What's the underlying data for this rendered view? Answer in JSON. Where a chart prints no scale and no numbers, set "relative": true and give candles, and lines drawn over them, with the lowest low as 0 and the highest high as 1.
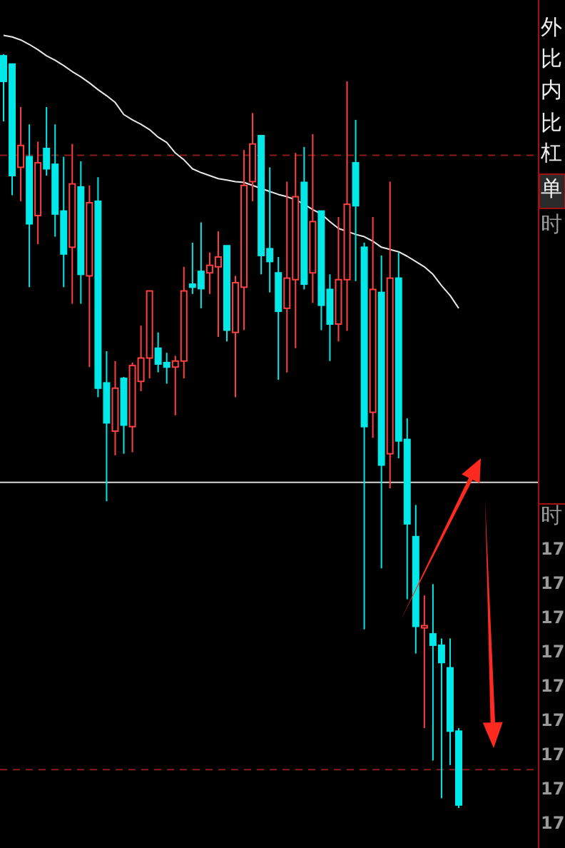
{
  "chart_data": {
    "type": "candlestick",
    "relative": true,
    "categories": [
      null,
      null,
      null,
      null,
      null,
      null,
      null,
      null,
      null,
      null,
      null,
      null,
      null,
      null,
      null,
      null,
      null,
      null,
      null,
      null,
      null,
      null,
      null,
      null,
      null,
      null,
      null,
      null,
      null,
      null,
      null,
      null,
      null,
      null,
      null,
      null,
      null,
      null,
      null,
      null,
      null,
      null,
      null,
      null,
      null,
      null,
      null,
      null,
      null,
      null,
      null,
      null,
      null,
      null
    ],
    "ohlc": [
      [
        0.998,
        1.0,
        0.911,
        0.964
      ],
      [
        0.987,
        0.987,
        0.813,
        0.839
      ],
      [
        0.85,
        0.93,
        0.805,
        0.879
      ],
      [
        0.864,
        0.907,
        0.691,
        0.775
      ],
      [
        0.786,
        0.884,
        0.748,
        0.856
      ],
      [
        0.875,
        0.93,
        0.839,
        0.848
      ],
      [
        0.854,
        0.907,
        0.758,
        0.788
      ],
      [
        0.792,
        0.864,
        0.691,
        0.735
      ],
      [
        0.744,
        0.881,
        0.669,
        0.828
      ],
      [
        0.824,
        0.858,
        0.669,
        0.708
      ],
      [
        0.706,
        0.826,
        0.585,
        0.803
      ],
      [
        0.805,
        0.837,
        0.545,
        0.557
      ],
      [
        0.564,
        0.606,
        0.407,
        0.511
      ],
      [
        0.5,
        0.593,
        0.468,
        0.557
      ],
      [
        0.57,
        0.572,
        0.47,
        0.508
      ],
      [
        0.506,
        0.591,
        0.472,
        0.587
      ],
      [
        0.566,
        0.64,
        0.553,
        0.597
      ],
      [
        0.597,
        0.686,
        0.57,
        0.686
      ],
      [
        0.61,
        0.631,
        0.578,
        0.589
      ],
      [
        0.591,
        0.604,
        0.563,
        0.585
      ],
      [
        0.585,
        0.6,
        0.521,
        0.593
      ],
      [
        0.593,
        0.718,
        0.57,
        0.686
      ],
      [
        0.695,
        0.75,
        0.682,
        0.691
      ],
      [
        0.712,
        0.777,
        0.663,
        0.689
      ],
      [
        0.71,
        0.737,
        0.682,
        0.72
      ],
      [
        0.718,
        0.765,
        0.625,
        0.731
      ],
      [
        0.746,
        0.746,
        0.619,
        0.634
      ],
      [
        0.631,
        0.706,
        0.545,
        0.697
      ],
      [
        0.691,
        0.873,
        0.634,
        0.826
      ],
      [
        0.831,
        0.922,
        0.805,
        0.881
      ],
      [
        0.892,
        0.892,
        0.708,
        0.733
      ],
      [
        0.742,
        0.85,
        0.684,
        0.725
      ],
      [
        0.71,
        0.731,
        0.568,
        0.659
      ],
      [
        0.663,
        0.831,
        0.578,
        0.703
      ],
      [
        0.701,
        0.869,
        0.61,
        0.811
      ],
      [
        0.83,
        0.877,
        0.688,
        0.695
      ],
      [
        0.71,
        0.894,
        0.67,
        0.778
      ],
      [
        0.792,
        0.792,
        0.634,
        0.667
      ],
      [
        0.688,
        0.708,
        0.593,
        0.642
      ],
      [
        0.642,
        0.784,
        0.619,
        0.701
      ],
      [
        0.701,
        0.964,
        0.633,
        0.801
      ],
      [
        0.856,
        0.913,
        0.699,
        0.799
      ],
      [
        0.744,
        0.75,
        0.237,
        0.506
      ],
      [
        0.525,
        0.784,
        0.491,
        0.688
      ],
      [
        0.684,
        0.733,
        0.318,
        0.455
      ],
      [
        0.47,
        0.831,
        0.424,
        0.703
      ],
      [
        0.703,
        0.737,
        0.464,
        0.487
      ],
      [
        0.489,
        0.517,
        0.277,
        0.377
      ],
      [
        0.36,
        0.402,
        0.205,
        0.241
      ],
      [
        0.239,
        0.282,
        0.106,
        0.242
      ],
      [
        0.231,
        0.297,
        0.063,
        0.216
      ],
      [
        0.216,
        0.225,
        0.013,
        0.193
      ],
      [
        0.186,
        0.225,
        0.057,
        0.102
      ],
      [
        0.102,
        0.106,
        0.0,
        0.004
      ]
    ],
    "colors": [
      "#00e8e8",
      "#00e8e8",
      "#ff4040",
      "#00e8e8",
      "#ff4040",
      "#00e8e8",
      "#00e8e8",
      "#00e8e8",
      "#ff4040",
      "#00e8e8",
      "#ff4040",
      "#00e8e8",
      "#00e8e8",
      "#ff4040",
      "#00e8e8",
      "#ff4040",
      "#ff4040",
      "#ff4040",
      "#00e8e8",
      "#00e8e8",
      "#ff4040",
      "#ff4040",
      "#00e8e8",
      "#00e8e8",
      "#ff4040",
      "#ff4040",
      "#00e8e8",
      "#ff4040",
      "#ff4040",
      "#ff4040",
      "#00e8e8",
      "#00e8e8",
      "#00e8e8",
      "#ff4040",
      "#ff4040",
      "#00e8e8",
      "#ff4040",
      "#00e8e8",
      "#00e8e8",
      "#ff4040",
      "#ff4040",
      "#00e8e8",
      "#00e8e8",
      "#ff4040",
      "#00e8e8",
      "#ff4040",
      "#00e8e8",
      "#00e8e8",
      "#00e8e8",
      "#ff4040",
      "#00e8e8",
      "#00e8e8",
      "#00e8e8",
      "#00e8e8"
    ],
    "series": [
      {
        "type": "line",
        "color": "#e8e8e8",
        "values": [
          1.025,
          1.023,
          1.019,
          1.013,
          1.006,
          0.998,
          0.992,
          0.985,
          0.977,
          0.97,
          0.962,
          0.953,
          0.945,
          0.936,
          0.92,
          0.913,
          0.907,
          0.9,
          0.89,
          0.883,
          0.869,
          0.86,
          0.848,
          0.843,
          0.839,
          0.835,
          0.833,
          0.831,
          0.83,
          0.826,
          0.822,
          0.818,
          0.814,
          0.811,
          0.807,
          0.801,
          0.794,
          0.788,
          0.778,
          0.769,
          0.765,
          0.761,
          0.758,
          0.752,
          0.744,
          0.741,
          0.738,
          0.732,
          0.725,
          0.718,
          0.708,
          0.693,
          0.68,
          0.663
        ]
      }
    ],
    "ref_lines": [
      {
        "axis": "y",
        "value": 0.432,
        "color": "#d8d8d8",
        "line_style": "solid"
      },
      {
        "axis": "y",
        "value": 0.866,
        "color": "#8b1a1a",
        "line_style": "dashed"
      },
      {
        "axis": "y",
        "value": 0.051,
        "color": "#8b1a1a",
        "line_style": "dashed"
      }
    ],
    "annotations": [
      "外",
      "比",
      "内",
      "比",
      "杠",
      "单",
      "时",
      "时",
      "17",
      "17",
      "17",
      "17",
      "17",
      "17",
      "17",
      "17",
      "17"
    ]
  }
}
